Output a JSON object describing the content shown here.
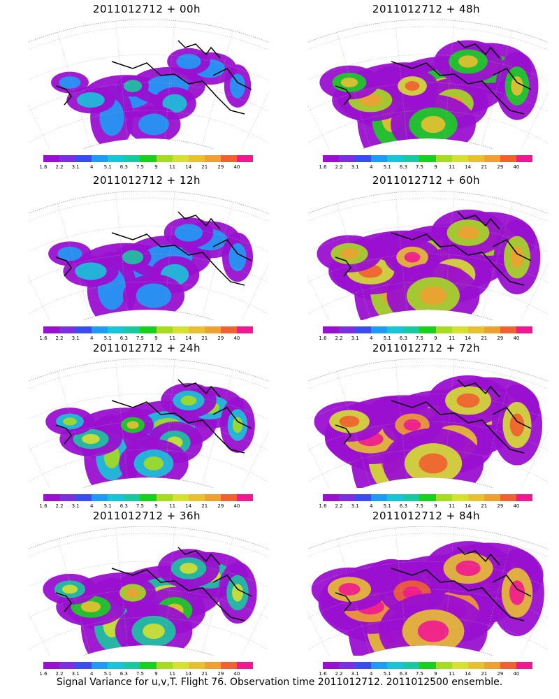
{
  "caption": "Signal Variance for u,v,T. Flight 76. Observation time 2011012712. 2011012500 ensemble.",
  "colorbar": {
    "labels": [
      "1.6",
      "2.2",
      "3.1",
      "4",
      "5.1",
      "6.3",
      "7.5",
      "9",
      "11",
      "14",
      "21",
      "29",
      "40"
    ],
    "colors": [
      "#9a10d0",
      "#7d2de0",
      "#3a4cf0",
      "#1e9cf5",
      "#18c4d8",
      "#19c8a0",
      "#18d020",
      "#a6dc20",
      "#d6e030",
      "#e8c030",
      "#f0a030",
      "#f06030",
      "#f01890"
    ]
  },
  "panels": [
    {
      "title": "2011012712 + 00h",
      "intensity": 0
    },
    {
      "title": "2011012712 + 48h",
      "intensity": 4
    },
    {
      "title": "2011012712 + 12h",
      "intensity": 1
    },
    {
      "title": "2011012712 + 60h",
      "intensity": 5
    },
    {
      "title": "2011012712 + 24h",
      "intensity": 2
    },
    {
      "title": "2011012712 + 72h",
      "intensity": 6
    },
    {
      "title": "2011012712 + 36h",
      "intensity": 3
    },
    {
      "title": "2011012712 + 84h",
      "intensity": 7
    }
  ]
}
